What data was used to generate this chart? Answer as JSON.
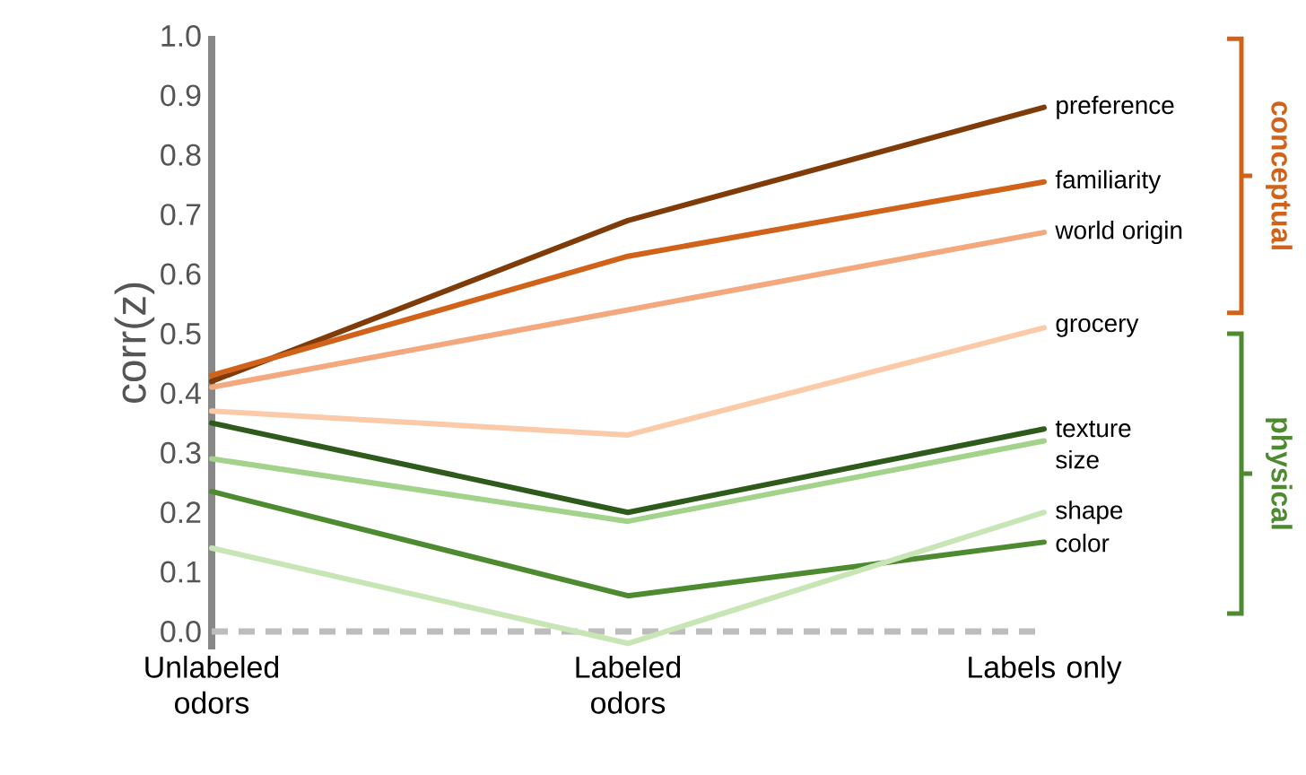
{
  "chart_data": {
    "type": "line",
    "ylabel": "corr(z)",
    "categories": [
      "Unlabeled odors",
      "Labeled odors",
      "Labels only"
    ],
    "series": [
      {
        "name": "preference",
        "color": "#7f3b08",
        "values": [
          0.42,
          0.69,
          0.88
        ]
      },
      {
        "name": "familiarity",
        "color": "#d0621a",
        "values": [
          0.43,
          0.63,
          0.755
        ]
      },
      {
        "name": "world origin",
        "color": "#f4a87e",
        "values": [
          0.41,
          0.54,
          0.67
        ]
      },
      {
        "name": "grocery",
        "color": "#fbcaa8",
        "values": [
          0.37,
          0.33,
          0.51
        ]
      },
      {
        "name": "texture",
        "color": "#2e5a1c",
        "values": [
          0.35,
          0.2,
          0.34
        ]
      },
      {
        "name": "size",
        "color": "#a3d28a",
        "values": [
          0.29,
          0.185,
          0.32
        ]
      },
      {
        "name": "color",
        "color": "#4e8a30",
        "values": [
          0.235,
          0.06,
          0.15
        ]
      },
      {
        "name": "shape",
        "color": "#c8e6b5",
        "values": [
          0.14,
          -0.02,
          0.2
        ]
      }
    ],
    "ylim": [
      -0.03,
      1.0
    ],
    "yticks": [
      {
        "value": 0,
        "label": "0.0"
      },
      0.1,
      0.2,
      0.3,
      0.4,
      0.5,
      0.6,
      0.7,
      0.8,
      0.9,
      {
        "value": 1,
        "label": "1.0"
      }
    ],
    "ref_lines": [
      {
        "axis": "y",
        "value": 0,
        "color": "#bdbdbd",
        "line_style": "dashed"
      }
    ],
    "annotations": [
      "conceptual",
      "physical"
    ],
    "legend": "right",
    "grid": false,
    "marker": "none",
    "line_style": "solid"
  }
}
